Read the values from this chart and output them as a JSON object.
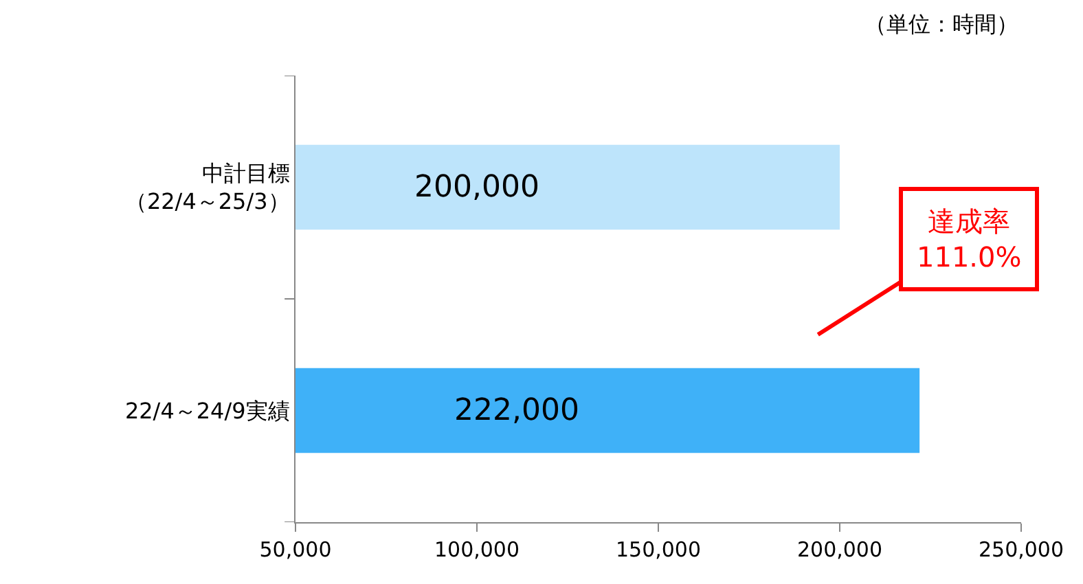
{
  "chart_data": {
    "type": "bar",
    "orientation": "horizontal",
    "categories": [
      "中計目標（22/4～25/3）",
      "22/4～24/9実績"
    ],
    "values": [
      200000,
      222000
    ],
    "value_labels": [
      "200,000",
      "222,000"
    ],
    "colors": [
      "#bde4fb",
      "#3fb1f8"
    ],
    "xlim": [
      50000,
      250000
    ],
    "xticks": [
      {
        "value": 50000,
        "label": "50,000"
      },
      {
        "value": 100000,
        "label": "100,000"
      },
      {
        "value": 150000,
        "label": "150,000"
      },
      {
        "value": 200000,
        "label": "200,000"
      },
      {
        "value": 250000,
        "label": "250,000"
      }
    ],
    "legend": false,
    "annotations": [
      "（単位：時間）",
      "達成率\n111.0%"
    ]
  }
}
